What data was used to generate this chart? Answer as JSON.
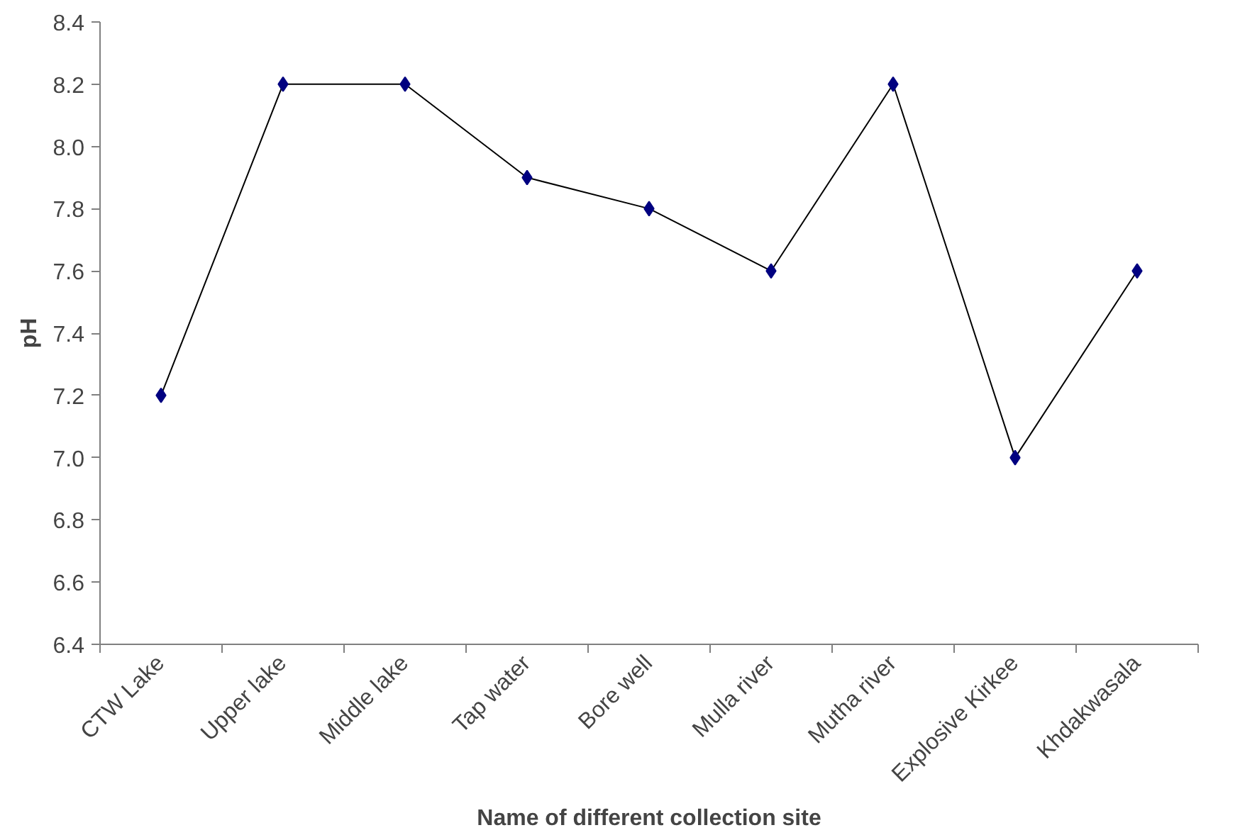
{
  "chart_data": {
    "type": "line",
    "xlabel": "Name of different collection site",
    "ylabel": "pH",
    "categories": [
      "CTW Lake",
      "Upper lake",
      "Middle lake",
      "Tap water",
      "Bore well",
      "Mulla river",
      "Mutha river",
      "Explosive Kirkee",
      "Khdakwasala"
    ],
    "series": [
      {
        "color": "#000080",
        "values": [
          7.2,
          8.2,
          8.2,
          7.9,
          7.8,
          7.6,
          8.2,
          7.0,
          7.6
        ]
      }
    ],
    "ylim": [
      6.4,
      8.4
    ],
    "yticks": [
      {
        "value": 6.4,
        "label": "6.4"
      },
      {
        "value": 6.6,
        "label": "6.6"
      },
      {
        "value": 6.8,
        "label": "6.8"
      },
      {
        "value": 7.0,
        "label": "7.0"
      },
      {
        "value": 7.2,
        "label": "7.2"
      },
      {
        "value": 7.4,
        "label": "7.4"
      },
      {
        "value": 7.6,
        "label": "7.6"
      },
      {
        "value": 7.8,
        "label": "7.8"
      },
      {
        "value": 8.0,
        "label": "8.0"
      },
      {
        "value": 8.2,
        "label": "8.2"
      },
      {
        "value": 8.4,
        "label": "8.4"
      }
    ],
    "marker": "diamond",
    "line_style": "solid"
  }
}
